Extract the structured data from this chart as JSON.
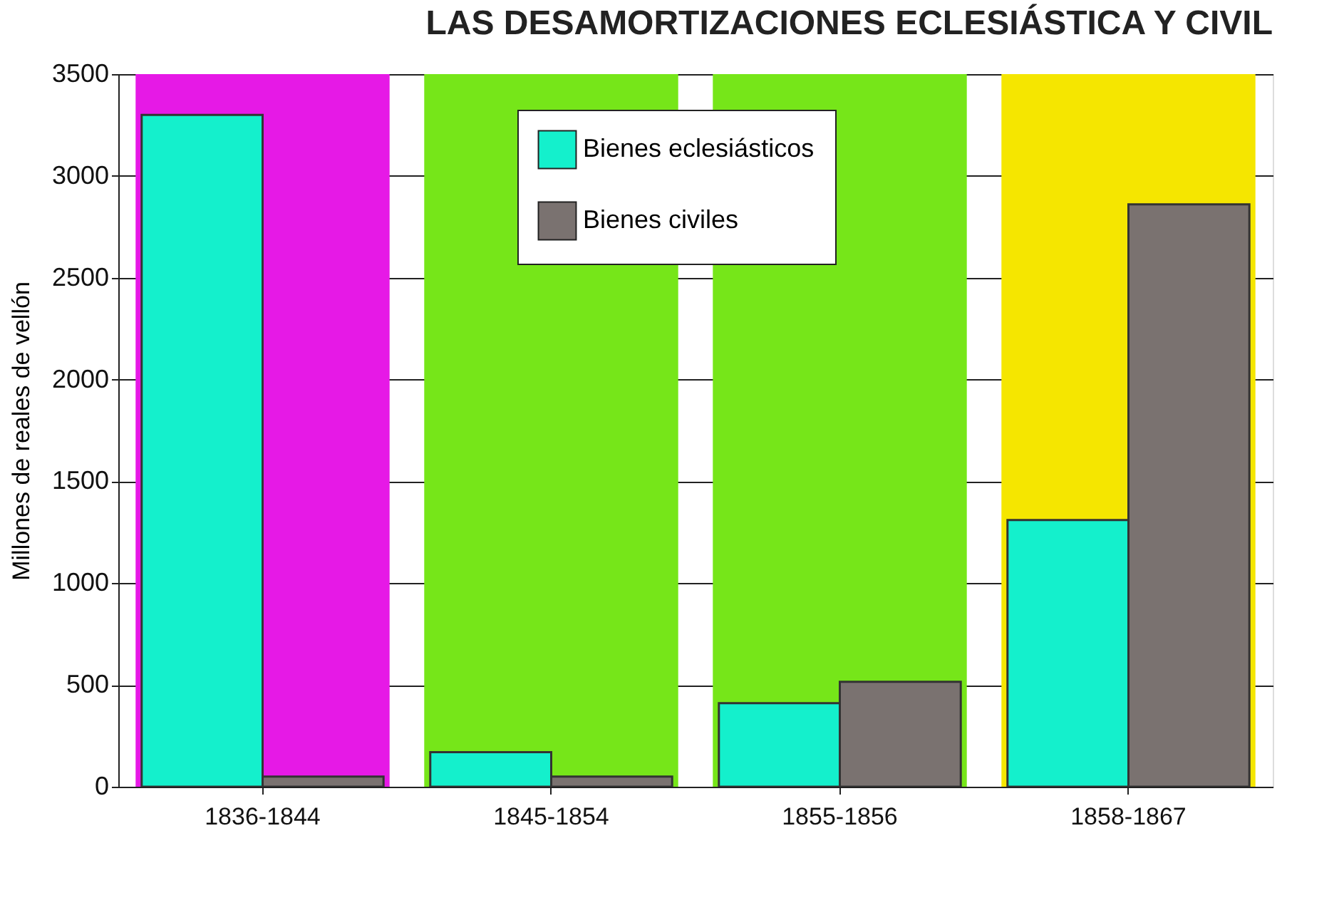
{
  "chart_data": {
    "type": "bar",
    "title": "LAS DESAMORTIZACIONES ECLESIÁSTICA Y CIVIL",
    "ylabel": "Millones de reales de vellón",
    "categories": [
      "1836-1844",
      "1845-1854",
      "1855-1856",
      "1858-1867"
    ],
    "series": [
      {
        "name": "Bienes eclesiásticos",
        "color": "#14f0cc",
        "values": [
          3300,
          170,
          410,
          1310
        ]
      },
      {
        "name": "Bienes civiles",
        "color": "#7a7270",
        "values": [
          50,
          50,
          515,
          2860
        ]
      }
    ],
    "ylim": [
      0,
      3500
    ],
    "yticks": [
      0,
      500,
      1000,
      1500,
      2000,
      2500,
      3000,
      3500
    ],
    "bands": [
      {
        "axis": "x",
        "from": "1836-1844",
        "to": "1836-1844",
        "color": "#e619e6"
      },
      {
        "axis": "x",
        "from": "1845-1854",
        "to": "1845-1854",
        "color": "#76e619"
      },
      {
        "axis": "x",
        "from": "1855-1856",
        "to": "1855-1856",
        "color": "#76e619"
      },
      {
        "axis": "x",
        "from": "1858-1867",
        "to": "1858-1867",
        "color": "#f5e600"
      }
    ],
    "grid": "y",
    "legend": "top"
  }
}
